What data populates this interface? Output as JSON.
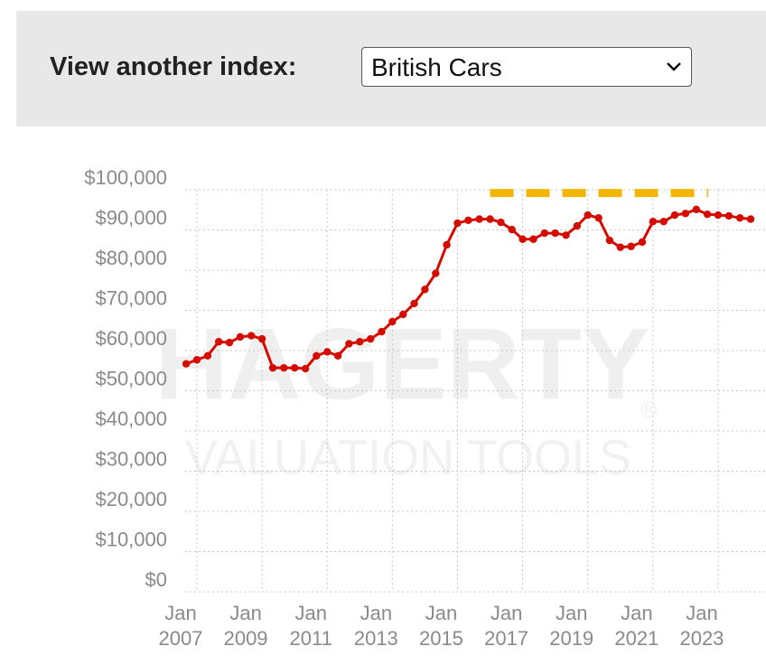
{
  "header": {
    "label": "View another index:",
    "select": "British Cars"
  },
  "chart_data": {
    "type": "line",
    "watermark": [
      "HAGERTY",
      "®",
      "VALUATION TOOLS"
    ],
    "xlim": [
      2007.14,
      2024.97
    ],
    "xticks": [
      {
        "value": 2007,
        "label": "Jan 2007"
      },
      {
        "value": 2009,
        "label": "Jan 2009"
      },
      {
        "value": 2011,
        "label": "Jan 2011"
      },
      {
        "value": 2013,
        "label": "Jan 2013"
      },
      {
        "value": 2015,
        "label": "Jan 2015"
      },
      {
        "value": 2017,
        "label": "Jan 2017"
      },
      {
        "value": 2019,
        "label": "Jan 2019"
      },
      {
        "value": 2021,
        "label": "Jan 2021"
      },
      {
        "value": 2023,
        "label": "Jan 2023"
      }
    ],
    "ylim": [
      0,
      100000
    ],
    "yticks": [
      {
        "value": 0,
        "label": "$0"
      },
      {
        "value": 10000,
        "label": "$10,000"
      },
      {
        "value": 20000,
        "label": "$20,000"
      },
      {
        "value": 30000,
        "label": "$30,000"
      },
      {
        "value": 40000,
        "label": "$40,000"
      },
      {
        "value": 50000,
        "label": "$50,000"
      },
      {
        "value": 60000,
        "label": "$60,000"
      },
      {
        "value": 70000,
        "label": "$70,000"
      },
      {
        "value": 80000,
        "label": "$80,000"
      },
      {
        "value": 90000,
        "label": "$90,000"
      },
      {
        "value": 100000,
        "label": "$100,000"
      }
    ],
    "grid": true,
    "series": [
      {
        "color": "#d40c00",
        "markers": true,
        "x": [
          2007.17,
          2007.5,
          2007.83,
          2008.17,
          2008.5,
          2008.83,
          2009.17,
          2009.5,
          2009.83,
          2010.17,
          2010.5,
          2010.83,
          2011.17,
          2011.5,
          2011.83,
          2012.17,
          2012.5,
          2012.83,
          2013.17,
          2013.5,
          2013.83,
          2014.17,
          2014.5,
          2014.83,
          2015.17,
          2015.5,
          2015.83,
          2016.17,
          2016.5,
          2016.83,
          2017.17,
          2017.5,
          2017.83,
          2018.17,
          2018.5,
          2018.83,
          2019.17,
          2019.5,
          2019.83,
          2020.17,
          2020.5,
          2020.83,
          2021.17,
          2021.5,
          2021.83,
          2022.17,
          2022.5,
          2022.83,
          2023.17,
          2023.5,
          2023.83,
          2024.17,
          2024.5
        ],
        "values": [
          54000,
          55000,
          56000,
          59500,
          59300,
          60700,
          61000,
          60200,
          53000,
          53000,
          53000,
          52800,
          56000,
          57000,
          56000,
          59000,
          59500,
          60200,
          62000,
          64500,
          66300,
          69000,
          72500,
          76500,
          83600,
          89000,
          89700,
          90000,
          90000,
          89200,
          87400,
          85000,
          85000,
          86500,
          86500,
          86000,
          88300,
          91000,
          90300,
          84700,
          83000,
          83200,
          84300,
          89400,
          89400,
          91000,
          91400,
          92400,
          91200,
          91000,
          90800,
          90300,
          90000
        ]
      },
      {
        "color": "#f2b600",
        "dashed": true,
        "x": [
          2016.5,
          2023.2
        ],
        "values": [
          96500,
          96500
        ]
      }
    ]
  }
}
